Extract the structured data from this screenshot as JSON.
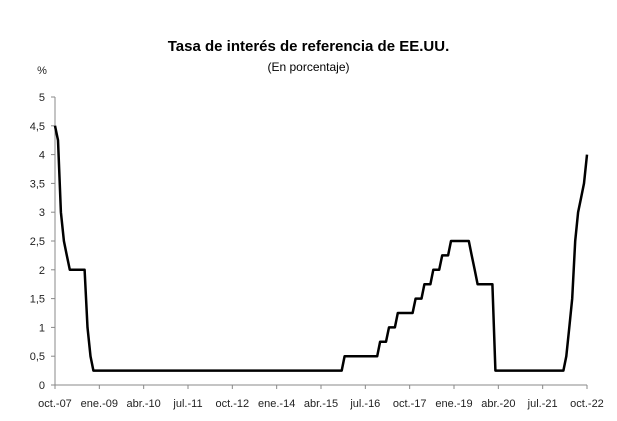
{
  "chart_data": {
    "type": "line",
    "title": "Tasa de interés de referencia de EE.UU.",
    "subtitle": "(En porcentaje)",
    "ylabel": "%",
    "xlabel": "",
    "ylim": [
      0,
      5
    ],
    "y_ticks": [
      "0",
      "0,5",
      "1",
      "1,5",
      "2",
      "2,5",
      "3",
      "3,5",
      "4",
      "4,5",
      "5"
    ],
    "x_tick_labels": [
      "oct.-07",
      "ene.-09",
      "abr.-10",
      "jul.-11",
      "oct.-12",
      "ene.-14",
      "abr.-15",
      "jul.-16",
      "oct.-17",
      "ene.-19",
      "abr.-20",
      "jul.-21",
      "oct.-22"
    ],
    "grid": false,
    "legend": "none",
    "series": [
      {
        "color": "#000000",
        "x": [
          "oct.-07",
          "nov.-07",
          "dic.-07",
          "ene.-08",
          "feb.-08",
          "mar.-08",
          "abr.-08",
          "may.-08",
          "jun.-08",
          "jul.-08",
          "ago.-08",
          "sep.-08",
          "oct.-08",
          "nov.-08",
          "dic.-08",
          "nov.-15",
          "dic.-15",
          "nov.-16",
          "dic.-16",
          "feb.-17",
          "mar.-17",
          "may.-17",
          "jun.-17",
          "nov.-17",
          "dic.-17",
          "feb.-18",
          "mar.-18",
          "may.-18",
          "jun.-18",
          "ago.-18",
          "sep.-18",
          "nov.-18",
          "dic.-18",
          "jun.-19",
          "jul.-19",
          "ago.-19",
          "sep.-19",
          "oct.-19",
          "feb.-20",
          "mar.-20",
          "feb.-22",
          "mar.-22",
          "abr.-22",
          "may.-22",
          "jun.-22",
          "jul.-22",
          "ago.-22",
          "sep.-22",
          "oct.-22"
        ],
        "values": [
          4.5,
          4.25,
          3.0,
          2.5,
          2.25,
          2.0,
          2.0,
          2.0,
          2.0,
          2.0,
          2.0,
          1.0,
          0.5,
          0.25,
          0.25,
          0.25,
          0.5,
          0.5,
          0.75,
          0.75,
          1.0,
          1.0,
          1.25,
          1.25,
          1.5,
          1.5,
          1.75,
          1.75,
          2.0,
          2.0,
          2.25,
          2.25,
          2.5,
          2.5,
          2.25,
          2.0,
          1.75,
          1.75,
          1.75,
          0.25,
          0.25,
          0.5,
          1.0,
          1.5,
          2.5,
          3.0,
          3.25,
          3.5,
          4.0
        ]
      }
    ]
  }
}
